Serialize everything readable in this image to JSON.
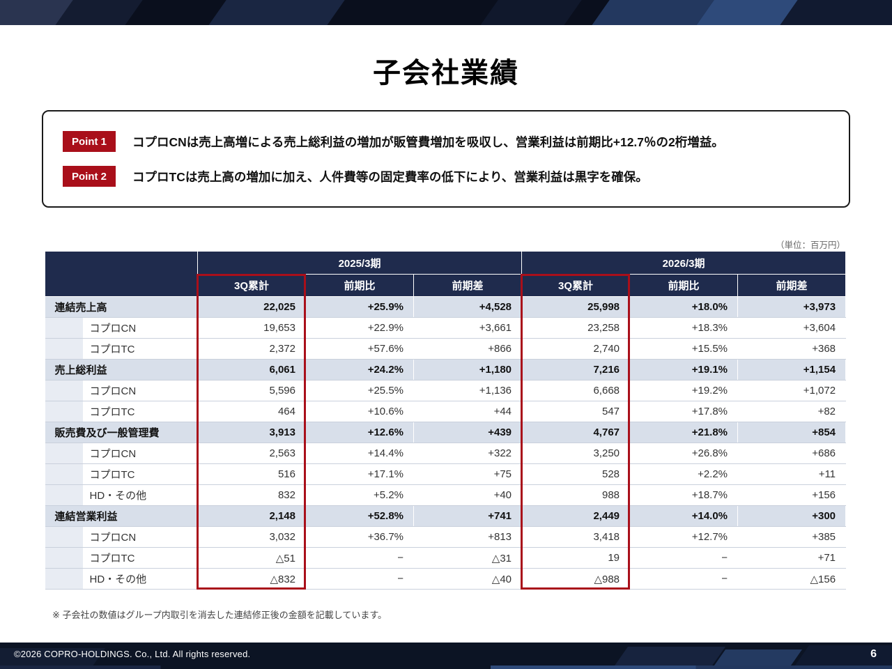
{
  "colors": {
    "accent_red": "#A90F1A",
    "header_navy": "#1F2B4D",
    "main_row_bg": "#D8DFEA",
    "sub_indent_bg": "#E8ECF3",
    "bar_navy": "#0C1424"
  },
  "header": {
    "title": "子会社業績"
  },
  "points": [
    {
      "label": "Point 1",
      "text": "コプロCNは売上高増による売上総利益の増加が販管費増加を吸収し、営業利益は前期比+12.7％の2桁増益。"
    },
    {
      "label": "Point 2",
      "text": "コプロTCは売上高の増加に加え、人件費等の固定費率の低下により、営業利益は黒字を確保。"
    }
  ],
  "unit_note": "（単位：百万円）",
  "chart_data": {
    "type": "table",
    "title": "子会社業績",
    "unit": "百万円",
    "period_headers": [
      "2025/3期",
      "2026/3期"
    ],
    "column_headers": [
      "3Q累計",
      "前期比",
      "前期差",
      "3Q累計",
      "前期比",
      "前期差"
    ],
    "highlighted_columns": [
      "2025/3期 3Q累計",
      "2026/3期 3Q累計"
    ],
    "rows": [
      {
        "label": "連結売上高",
        "indent": false,
        "values": [
          "22,025",
          "+25.9%",
          "+4,528",
          "25,998",
          "+18.0%",
          "+3,973"
        ]
      },
      {
        "label": "コプロCN",
        "indent": true,
        "values": [
          "19,653",
          "+22.9%",
          "+3,661",
          "23,258",
          "+18.3%",
          "+3,604"
        ]
      },
      {
        "label": "コプロTC",
        "indent": true,
        "values": [
          "2,372",
          "+57.6%",
          "+866",
          "2,740",
          "+15.5%",
          "+368"
        ]
      },
      {
        "label": "売上総利益",
        "indent": false,
        "values": [
          "6,061",
          "+24.2%",
          "+1,180",
          "7,216",
          "+19.1%",
          "+1,154"
        ]
      },
      {
        "label": "コプロCN",
        "indent": true,
        "values": [
          "5,596",
          "+25.5%",
          "+1,136",
          "6,668",
          "+19.2%",
          "+1,072"
        ]
      },
      {
        "label": "コプロTC",
        "indent": true,
        "values": [
          "464",
          "+10.6%",
          "+44",
          "547",
          "+17.8%",
          "+82"
        ]
      },
      {
        "label": "販売費及び一般管理費",
        "indent": false,
        "values": [
          "3,913",
          "+12.6%",
          "+439",
          "4,767",
          "+21.8%",
          "+854"
        ]
      },
      {
        "label": "コプロCN",
        "indent": true,
        "values": [
          "2,563",
          "+14.4%",
          "+322",
          "3,250",
          "+26.8%",
          "+686"
        ]
      },
      {
        "label": "コプロTC",
        "indent": true,
        "values": [
          "516",
          "+17.1%",
          "+75",
          "528",
          "+2.2%",
          "+11"
        ]
      },
      {
        "label": "HD・その他",
        "indent": true,
        "values": [
          "832",
          "+5.2%",
          "+40",
          "988",
          "+18.7%",
          "+156"
        ]
      },
      {
        "label": "連結営業利益",
        "indent": false,
        "values": [
          "2,148",
          "+52.8%",
          "+741",
          "2,449",
          "+14.0%",
          "+300"
        ]
      },
      {
        "label": "コプロCN",
        "indent": true,
        "values": [
          "3,032",
          "+36.7%",
          "+813",
          "3,418",
          "+12.7%",
          "+385"
        ]
      },
      {
        "label": "コプロTC",
        "indent": true,
        "values": [
          "△51",
          "−",
          "△31",
          "19",
          "−",
          "+71"
        ]
      },
      {
        "label": "HD・その他",
        "indent": true,
        "values": [
          "△832",
          "−",
          "△40",
          "△988",
          "−",
          "△156"
        ]
      }
    ]
  },
  "footnote": "※ 子会社の数値はグループ内取引を消去した連結修正後の金額を記載しています。",
  "footer": {
    "copyright": "©2026 COPRO-HOLDINGS. Co., Ltd. All rights reserved.",
    "page_number": "6"
  }
}
